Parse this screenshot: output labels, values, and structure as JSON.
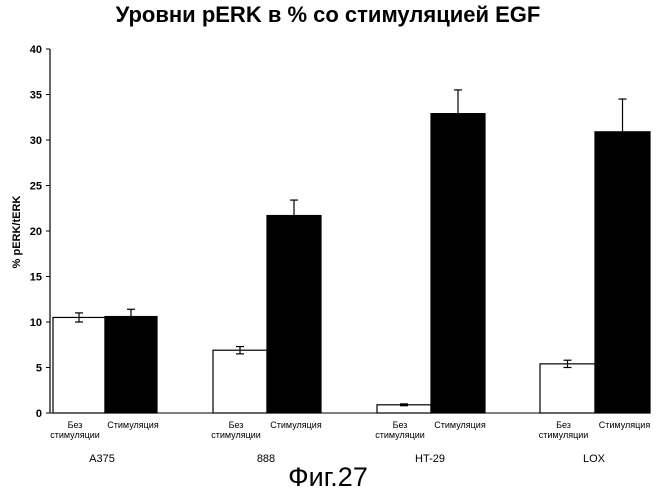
{
  "figure": {
    "caption": "Фиг.27"
  },
  "chart_data": {
    "type": "bar",
    "title": "Уровни pERK в % со стимуляцией EGF",
    "xlabel": "",
    "ylabel": "% pERK/tERK",
    "ylim": [
      0,
      40
    ],
    "yticks": [
      0,
      5,
      10,
      15,
      20,
      25,
      30,
      35,
      40
    ],
    "grid": false,
    "categories": [
      "A375",
      "888",
      "HT-29",
      "LOX"
    ],
    "series": [
      {
        "bar_label": [
          "Без",
          "стимуляции"
        ],
        "fill": "#ffffff",
        "values": [
          10.5,
          6.9,
          0.9,
          5.4
        ],
        "errors": [
          0.5,
          0.4,
          0.1,
          0.4
        ]
      },
      {
        "bar_label": [
          "Стимуляция"
        ],
        "fill": "#000000",
        "values": [
          10.6,
          21.7,
          32.9,
          30.9
        ],
        "errors": [
          0.8,
          1.7,
          2.6,
          3.6
        ]
      }
    ]
  }
}
